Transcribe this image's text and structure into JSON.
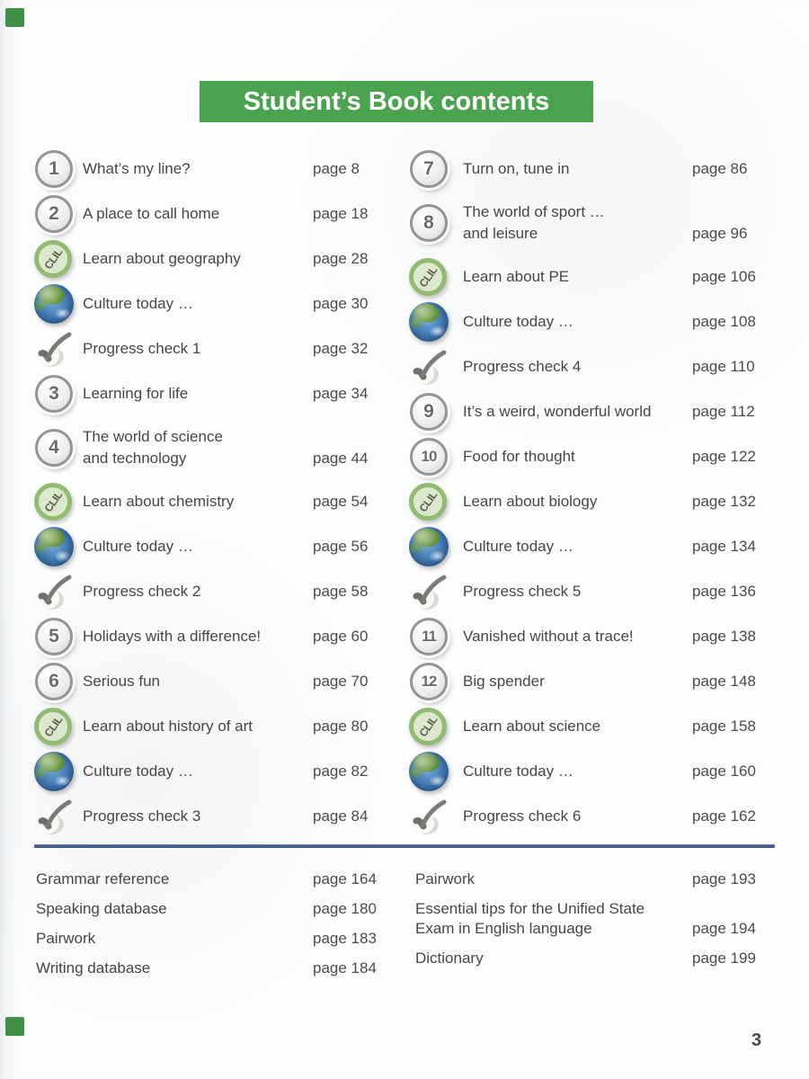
{
  "header": {
    "title": "Student’s Book contents"
  },
  "colors": {
    "banner_green": "#4ba350",
    "corner_mark_green": "#3f8f46",
    "divider_blue": "#46618e",
    "clil_ring_green": "#90bb70",
    "text_gray": "#464646"
  },
  "icons": {
    "clil_label": "CLIL"
  },
  "columns": {
    "left": [
      {
        "icon": "number",
        "num": "1",
        "title": "What’s my line?",
        "page": "page 8"
      },
      {
        "icon": "number",
        "num": "2",
        "title": "A place to call home",
        "page": "page 18"
      },
      {
        "icon": "clil",
        "title": "Learn about geography",
        "page": "page 28"
      },
      {
        "icon": "globe",
        "title": "Culture today …",
        "page": "page 30"
      },
      {
        "icon": "check",
        "title": "Progress check 1",
        "page": "page 32"
      },
      {
        "icon": "number",
        "num": "3",
        "title": "Learning for life",
        "page": "page 34"
      },
      {
        "icon": "number",
        "num": "4",
        "title_lines": [
          "The world of science",
          "and technology"
        ],
        "page": "page 44"
      },
      {
        "icon": "clil",
        "title": "Learn about chemistry",
        "page": "page 54"
      },
      {
        "icon": "globe",
        "title": "Culture today …",
        "page": "page 56"
      },
      {
        "icon": "check",
        "title": "Progress check 2",
        "page": "page 58"
      },
      {
        "icon": "number",
        "num": "5",
        "title": "Holidays with a difference!",
        "page": "page 60"
      },
      {
        "icon": "number",
        "num": "6",
        "title": "Serious fun",
        "page": "page 70"
      },
      {
        "icon": "clil",
        "title": "Learn about history of art",
        "page": "page 80"
      },
      {
        "icon": "globe",
        "title": "Culture today …",
        "page": "page 82"
      },
      {
        "icon": "check",
        "title": "Progress check 3",
        "page": "page 84"
      }
    ],
    "right": [
      {
        "icon": "number",
        "num": "7",
        "title": "Turn on, tune in",
        "page": "page 86"
      },
      {
        "icon": "number",
        "num": "8",
        "title_lines": [
          "The world of sport …",
          "and leisure"
        ],
        "page": "page 96"
      },
      {
        "icon": "clil",
        "title": "Learn about PE",
        "page": "page 106"
      },
      {
        "icon": "globe",
        "title": "Culture today …",
        "page": "page 108"
      },
      {
        "icon": "check",
        "title": "Progress check 4",
        "page": "page 110"
      },
      {
        "icon": "number",
        "num": "9",
        "title": "It’s a weird, wonderful world",
        "page": "page 112"
      },
      {
        "icon": "number",
        "num": "10",
        "title": "Food for thought",
        "page": "page 122"
      },
      {
        "icon": "clil",
        "title": "Learn about biology",
        "page": "page 132"
      },
      {
        "icon": "globe",
        "title": "Culture today …",
        "page": "page 134"
      },
      {
        "icon": "check",
        "title": "Progress check 5",
        "page": "page 136"
      },
      {
        "icon": "number",
        "num": "11",
        "title": "Vanished without a trace!",
        "page": "page 138"
      },
      {
        "icon": "number",
        "num": "12",
        "title": "Big spender",
        "page": "page 148"
      },
      {
        "icon": "clil",
        "title": "Learn about science",
        "page": "page 158"
      },
      {
        "icon": "globe",
        "title": "Culture today …",
        "page": "page 160"
      },
      {
        "icon": "check",
        "title": "Progress check 6",
        "page": "page 162"
      }
    ]
  },
  "footer": {
    "left": [
      {
        "title": "Grammar reference",
        "page": "page 164"
      },
      {
        "title": "Speaking database",
        "page": "page 180"
      },
      {
        "title": "Pairwork",
        "page": "page 183"
      },
      {
        "title": "Writing database",
        "page": "page 184"
      }
    ],
    "right": [
      {
        "title": "Pairwork",
        "page": "page 193"
      },
      {
        "title_lines": [
          "Essential tips for the Unified State",
          "Exam in English language"
        ],
        "page": "page 194"
      },
      {
        "title": "Dictionary",
        "page": "page 199"
      }
    ]
  },
  "folio": {
    "page_number": "3"
  }
}
